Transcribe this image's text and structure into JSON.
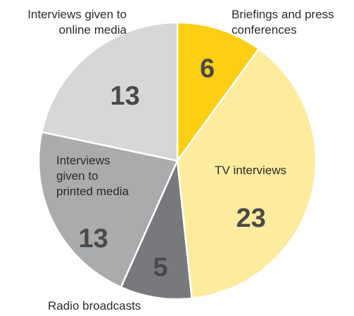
{
  "chart_data": {
    "type": "pie",
    "title": "",
    "slices": [
      {
        "label": "Briefings and press conferences",
        "value": 6,
        "color": "#fccf12"
      },
      {
        "label": "TV interviews",
        "value": 23,
        "color": "#fdec9e"
      },
      {
        "label": "Radio broadcasts",
        "value": 5,
        "color": "#77797c"
      },
      {
        "label": "Interviews given to printed media",
        "value": 13,
        "color": "#a9abad"
      },
      {
        "label": "Interviews given to online media",
        "value": 13,
        "color": "#d6d7d9"
      }
    ],
    "value_label_color": "#4a4a4a"
  },
  "labels": {
    "online": [
      "Interviews given to",
      "online media"
    ],
    "briefings": [
      "Briefings and press",
      "conferences"
    ],
    "radio": "Radio broadcasts",
    "tv": "TV interviews",
    "printed": [
      "Interviews",
      "given to",
      "printed media"
    ]
  }
}
